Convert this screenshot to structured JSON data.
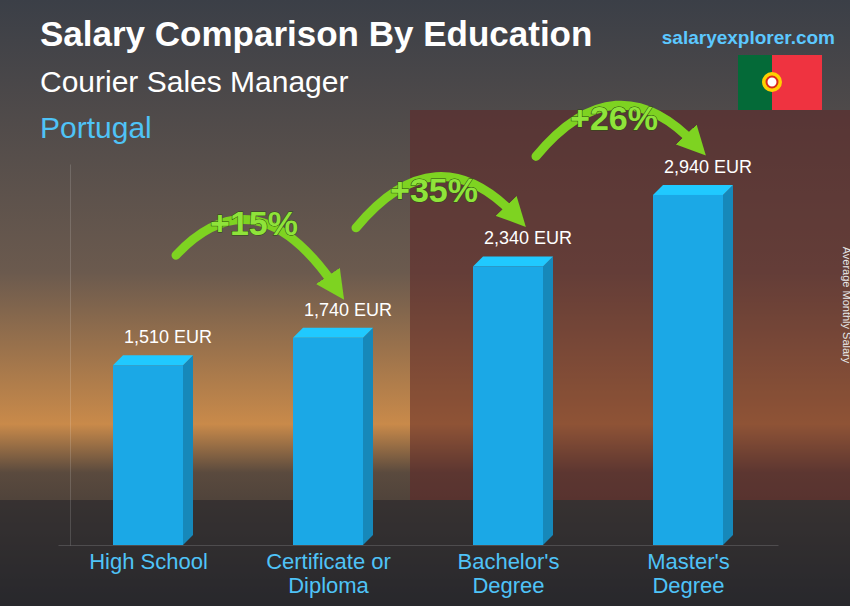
{
  "chart_data": {
    "type": "bar",
    "title": "Salary Comparison By Education",
    "subtitle": "Courier Sales Manager",
    "location": "Portugal",
    "source": "salaryexplorer.com",
    "ylabel": "Average Monthly Salary",
    "categories": [
      "High School",
      "Certificate or Diploma",
      "Bachelor's Degree",
      "Master's Degree"
    ],
    "values": [
      1510,
      1740,
      2340,
      2940
    ],
    "value_labels": [
      "1,510 EUR",
      "1,740 EUR",
      "2,340 EUR",
      "2,940 EUR"
    ],
    "data_labels": true,
    "color": "#1ba8e6",
    "ylim": [
      0,
      3200
    ],
    "yticks": [],
    "tick_labels": "x",
    "grid": false,
    "annotations": [
      {
        "text": "+15%"
      },
      {
        "text": "+35%"
      },
      {
        "text": "+26%"
      }
    ]
  }
}
